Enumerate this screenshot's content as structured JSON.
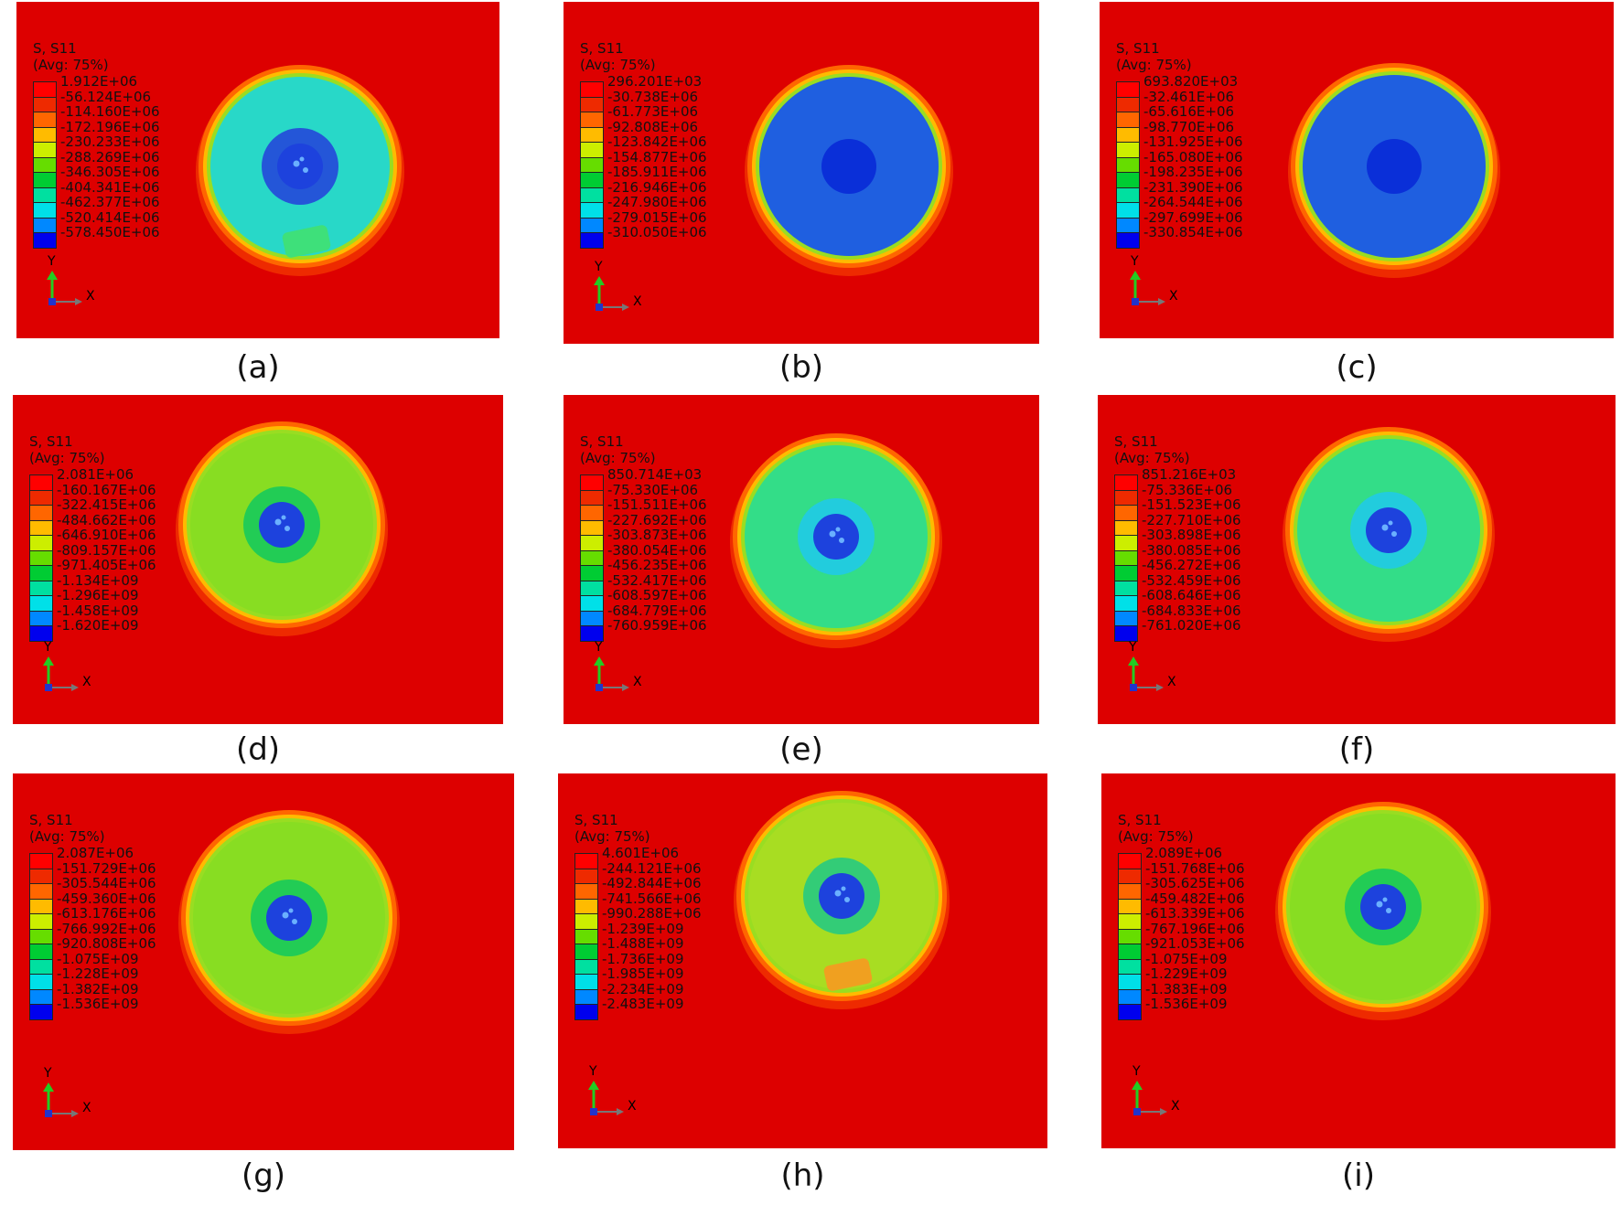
{
  "panels": [
    {
      "caption": "(a)",
      "header": "S, S11",
      "avg": "(Avg: 75%)",
      "values": [
        "1.912E+06",
        "-56.124E+06",
        "-114.160E+06",
        "-172.196E+06",
        "-230.233E+06",
        "-288.269E+06",
        "-346.305E+06",
        "-404.341E+06",
        "-462.377E+06",
        "-520.414E+06",
        "-578.450E+06"
      ],
      "fill": "#28d8c8",
      "core": "#2456d8",
      "hole": true,
      "patch": "#3ee07a"
    },
    {
      "caption": "(b)",
      "header": "S, S11",
      "avg": "(Avg: 75%)",
      "values": [
        "296.201E+03",
        "-30.738E+06",
        "-61.773E+06",
        "-92.808E+06",
        "-123.842E+06",
        "-154.877E+06",
        "-185.911E+06",
        "-216.946E+06",
        "-247.980E+06",
        "-279.015E+06",
        "-310.050E+06"
      ],
      "fill": "#1f5fe0",
      "core": "#0a2fd8",
      "hole": false,
      "patch": null
    },
    {
      "caption": "(c)",
      "header": "S, S11",
      "avg": "(Avg: 75%)",
      "values": [
        "693.820E+03",
        "-32.461E+06",
        "-65.616E+06",
        "-98.770E+06",
        "-131.925E+06",
        "-165.080E+06",
        "-198.235E+06",
        "-231.390E+06",
        "-264.544E+06",
        "-297.699E+06",
        "-330.854E+06"
      ],
      "fill": "#1f5fe0",
      "core": "#0a2fd8",
      "hole": false,
      "patch": null
    },
    {
      "caption": "(d)",
      "header": "S, S11",
      "avg": "(Avg: 75%)",
      "values": [
        "2.081E+06",
        "-160.167E+06",
        "-322.415E+06",
        "-484.662E+06",
        "-646.910E+06",
        "-809.157E+06",
        "-971.405E+06",
        "-1.134E+09",
        "-1.296E+09",
        "-1.458E+09",
        "-1.620E+09"
      ],
      "fill": "#88dd22",
      "core": "#22cc55",
      "hole": true,
      "patch": null
    },
    {
      "caption": "(e)",
      "header": "S, S11",
      "avg": "(Avg: 75%)",
      "values": [
        "850.714E+03",
        "-75.330E+06",
        "-151.511E+06",
        "-227.692E+06",
        "-303.873E+06",
        "-380.054E+06",
        "-456.235E+06",
        "-532.417E+06",
        "-608.597E+06",
        "-684.779E+06",
        "-760.959E+06"
      ],
      "fill": "#33dd88",
      "core": "#22ccdd",
      "hole": true,
      "patch": null
    },
    {
      "caption": "(f)",
      "header": "S, S11",
      "avg": "(Avg: 75%)",
      "values": [
        "851.216E+03",
        "-75.336E+06",
        "-151.523E+06",
        "-227.710E+06",
        "-303.898E+06",
        "-380.085E+06",
        "-456.272E+06",
        "-532.459E+06",
        "-608.646E+06",
        "-684.833E+06",
        "-761.020E+06"
      ],
      "fill": "#33dd88",
      "core": "#22ccdd",
      "hole": true,
      "patch": null
    },
    {
      "caption": "(g)",
      "header": "S, S11",
      "avg": "(Avg: 75%)",
      "values": [
        "2.087E+06",
        "-151.729E+06",
        "-305.544E+06",
        "-459.360E+06",
        "-613.176E+06",
        "-766.992E+06",
        "-920.808E+06",
        "-1.075E+09",
        "-1.228E+09",
        "-1.382E+09",
        "-1.536E+09"
      ],
      "fill": "#88dd22",
      "core": "#22cc55",
      "hole": true,
      "patch": null
    },
    {
      "caption": "(h)",
      "header": "S, S11",
      "avg": "(Avg: 75%)",
      "values": [
        "4.601E+06",
        "-244.121E+06",
        "-492.844E+06",
        "-741.566E+06",
        "-990.288E+06",
        "-1.239E+09",
        "-1.488E+09",
        "-1.736E+09",
        "-1.985E+09",
        "-2.234E+09",
        "-2.483E+09"
      ],
      "fill": "#a8dd22",
      "core": "#33cc77",
      "hole": true,
      "patch": "#f0a020"
    },
    {
      "caption": "(i)",
      "header": "S, S11",
      "avg": "(Avg: 75%)",
      "values": [
        "2.089E+06",
        "-151.768E+06",
        "-305.625E+06",
        "-459.482E+06",
        "-613.339E+06",
        "-767.196E+06",
        "-921.053E+06",
        "-1.075E+09",
        "-1.229E+09",
        "-1.383E+09",
        "-1.536E+09"
      ],
      "fill": "#88dd22",
      "core": "#22cc55",
      "hole": true,
      "patch": null
    }
  ],
  "axis_labels": {
    "y": "Y",
    "x": "X"
  },
  "legend_colors": [
    "#ff0000",
    "#ee2a00",
    "#ff6600",
    "#ffbb00",
    "#ccee00",
    "#66dd00",
    "#00cc33",
    "#00e0a0",
    "#00e0e8",
    "#0088ff",
    "#0000ee"
  ]
}
